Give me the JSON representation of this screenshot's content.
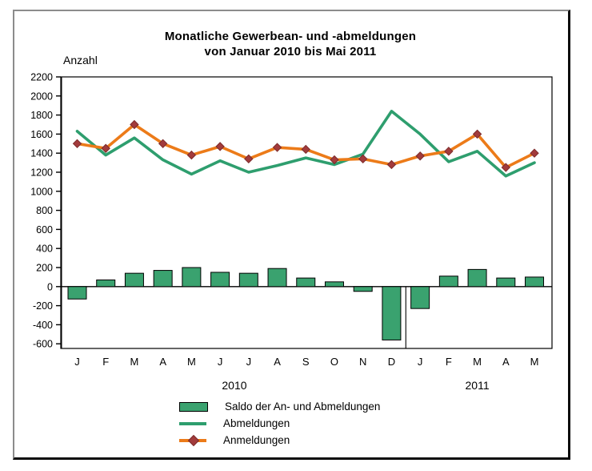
{
  "title": {
    "line1": "Monatliche Gewerbean- und -abmeldungen",
    "line2": "von Januar 2010 bis Mai 2011"
  },
  "axis_caption": "Anzahl",
  "chart_data": {
    "type": "bar+line combo",
    "title": "Monatliche Gewerbean- und -abmeldungen von Januar 2010 bis Mai 2011",
    "ylabel": "Anzahl",
    "ylim": [
      -600,
      2200
    ],
    "ytick_step": 200,
    "grid": "off",
    "legend_position": "bottom",
    "categories": [
      "J",
      "F",
      "M",
      "A",
      "M",
      "J",
      "J",
      "A",
      "S",
      "O",
      "N",
      "D",
      "J",
      "F",
      "M",
      "A",
      "M"
    ],
    "year_groups": [
      {
        "label": "2010",
        "start_index": 0,
        "end_index": 11
      },
      {
        "label": "2011",
        "start_index": 12,
        "end_index": 16
      }
    ],
    "series": [
      {
        "name": "Saldo der An- und Abmeldungen",
        "type": "bar",
        "color": "#3aa26f",
        "border_color": "#000000",
        "values": [
          -130,
          70,
          140,
          170,
          200,
          150,
          140,
          190,
          90,
          50,
          -50,
          -560,
          -230,
          110,
          180,
          90,
          100
        ]
      },
      {
        "name": "Abmeldungen",
        "type": "line",
        "color": "#2e9e6e",
        "values": [
          1630,
          1380,
          1560,
          1330,
          1180,
          1320,
          1200,
          1270,
          1350,
          1280,
          1390,
          1840,
          1600,
          1310,
          1420,
          1160,
          1300
        ]
      },
      {
        "name": "Anmeldungen",
        "type": "line",
        "color": "#ec7b19",
        "marker": "diamond",
        "marker_color": "#a23b3c",
        "values": [
          1500,
          1450,
          1700,
          1500,
          1380,
          1470,
          1340,
          1460,
          1440,
          1330,
          1340,
          1280,
          1370,
          1420,
          1600,
          1250,
          1400
        ]
      }
    ]
  },
  "colors": {
    "bar_green": "#3aa26f",
    "line_green": "#2e9e6e",
    "line_orange": "#ec7b19",
    "marker_red": "#a23b3c",
    "axis_black": "#000000",
    "frame_gray": "#8c8c8c"
  }
}
